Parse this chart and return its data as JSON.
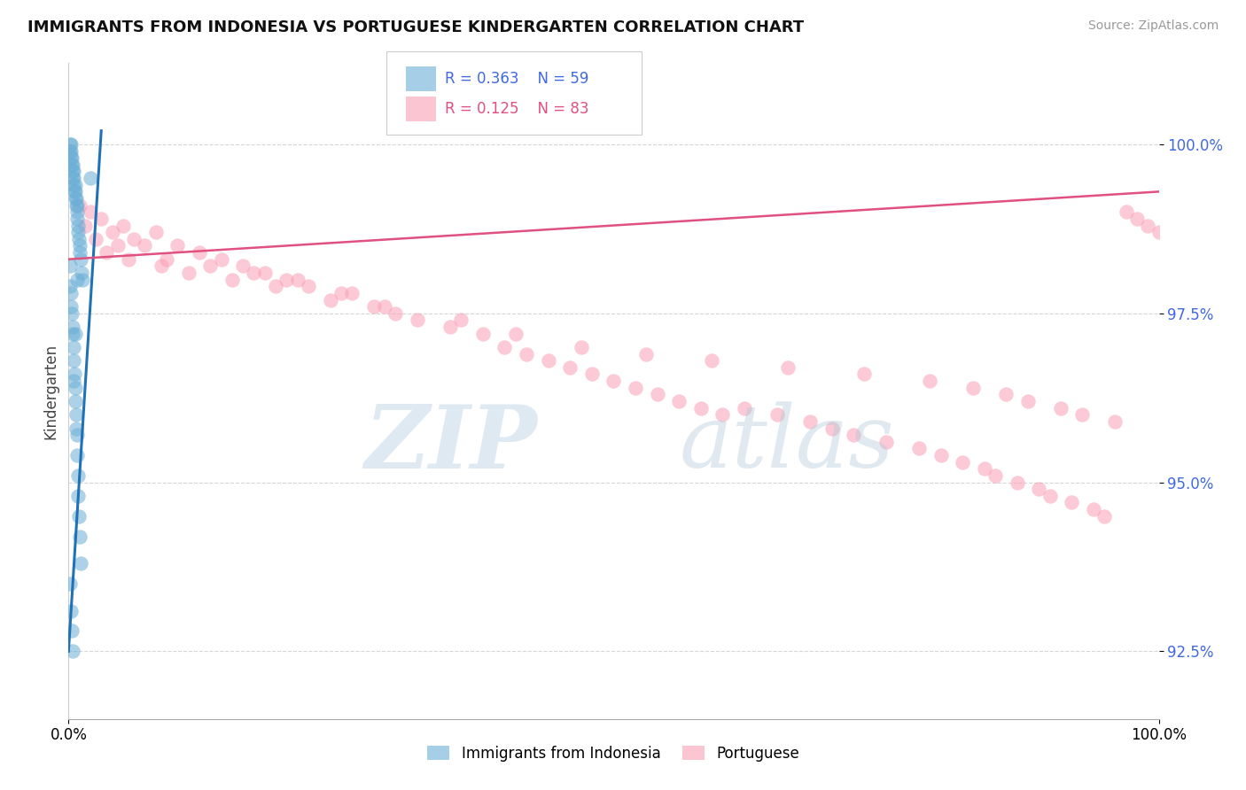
{
  "title": "IMMIGRANTS FROM INDONESIA VS PORTUGUESE KINDERGARTEN CORRELATION CHART",
  "source": "Source: ZipAtlas.com",
  "ylabel": "Kindergarten",
  "yaxis_values": [
    100.0,
    97.5,
    95.0,
    92.5
  ],
  "xaxis_min": 0.0,
  "xaxis_max": 100.0,
  "yaxis_min": 91.5,
  "yaxis_max": 101.2,
  "legend_blue_r": "0.363",
  "legend_blue_n": "59",
  "legend_pink_r": "0.125",
  "legend_pink_n": "83",
  "legend_blue_label": "Immigrants from Indonesia",
  "legend_pink_label": "Portuguese",
  "blue_color": "#6baed6",
  "pink_color": "#fa9fb5",
  "blue_line_color": "#2171b5",
  "pink_line_color": "#e05080",
  "blue_scatter_x": [
    0.1,
    0.15,
    0.2,
    0.2,
    0.25,
    0.3,
    0.3,
    0.35,
    0.4,
    0.4,
    0.45,
    0.5,
    0.5,
    0.55,
    0.6,
    0.6,
    0.65,
    0.7,
    0.7,
    0.75,
    0.8,
    0.8,
    0.85,
    0.9,
    0.95,
    1.0,
    1.0,
    1.1,
    1.2,
    1.3,
    0.1,
    0.15,
    0.2,
    0.25,
    0.3,
    0.35,
    0.4,
    0.45,
    0.5,
    0.55,
    0.6,
    0.65,
    0.7,
    0.75,
    0.8,
    0.85,
    0.9,
    0.95,
    1.0,
    1.1,
    0.1,
    0.2,
    0.3,
    0.4,
    0.5,
    0.6,
    0.7,
    0.8,
    2.0
  ],
  "blue_scatter_y": [
    100.0,
    99.9,
    100.0,
    99.8,
    99.9,
    99.7,
    99.8,
    99.6,
    99.7,
    99.5,
    99.6,
    99.5,
    99.4,
    99.3,
    99.4,
    99.2,
    99.3,
    99.1,
    99.2,
    99.0,
    99.1,
    98.9,
    98.8,
    98.7,
    98.6,
    98.5,
    98.4,
    98.3,
    98.1,
    98.0,
    98.2,
    97.9,
    97.8,
    97.6,
    97.5,
    97.3,
    97.2,
    97.0,
    96.8,
    96.6,
    96.4,
    96.2,
    96.0,
    95.7,
    95.4,
    95.1,
    94.8,
    94.5,
    94.2,
    93.8,
    93.5,
    93.1,
    92.8,
    92.5,
    96.5,
    97.2,
    95.8,
    98.0,
    99.5
  ],
  "pink_scatter_x": [
    1.0,
    1.5,
    2.0,
    3.0,
    4.0,
    5.0,
    6.0,
    7.0,
    8.0,
    10.0,
    12.0,
    14.0,
    16.0,
    18.0,
    20.0,
    22.0,
    25.0,
    28.0,
    30.0,
    32.0,
    35.0,
    38.0,
    40.0,
    42.0,
    44.0,
    46.0,
    48.0,
    50.0,
    52.0,
    54.0,
    56.0,
    58.0,
    60.0,
    62.0,
    65.0,
    68.0,
    70.0,
    72.0,
    75.0,
    78.0,
    80.0,
    82.0,
    84.0,
    85.0,
    87.0,
    89.0,
    90.0,
    92.0,
    94.0,
    95.0,
    97.0,
    98.0,
    99.0,
    100.0,
    2.5,
    3.5,
    5.5,
    8.5,
    11.0,
    15.0,
    19.0,
    24.0,
    29.0,
    36.0,
    41.0,
    47.0,
    53.0,
    59.0,
    66.0,
    73.0,
    79.0,
    83.0,
    86.0,
    88.0,
    91.0,
    93.0,
    96.0,
    4.5,
    9.0,
    13.0,
    17.0,
    21.0,
    26.0
  ],
  "pink_scatter_y": [
    99.1,
    98.8,
    99.0,
    98.9,
    98.7,
    98.8,
    98.6,
    98.5,
    98.7,
    98.5,
    98.4,
    98.3,
    98.2,
    98.1,
    98.0,
    97.9,
    97.8,
    97.6,
    97.5,
    97.4,
    97.3,
    97.2,
    97.0,
    96.9,
    96.8,
    96.7,
    96.6,
    96.5,
    96.4,
    96.3,
    96.2,
    96.1,
    96.0,
    96.1,
    96.0,
    95.9,
    95.8,
    95.7,
    95.6,
    95.5,
    95.4,
    95.3,
    95.2,
    95.1,
    95.0,
    94.9,
    94.8,
    94.7,
    94.6,
    94.5,
    99.0,
    98.9,
    98.8,
    98.7,
    98.6,
    98.4,
    98.3,
    98.2,
    98.1,
    98.0,
    97.9,
    97.7,
    97.6,
    97.4,
    97.2,
    97.0,
    96.9,
    96.8,
    96.7,
    96.6,
    96.5,
    96.4,
    96.3,
    96.2,
    96.1,
    96.0,
    95.9,
    98.5,
    98.3,
    98.2,
    98.1,
    98.0,
    97.8
  ],
  "blue_trend_x": [
    0.0,
    3.0
  ],
  "blue_trend_y": [
    92.5,
    100.2
  ],
  "pink_trend_x": [
    0.0,
    100.0
  ],
  "pink_trend_y": [
    98.3,
    99.3
  ]
}
